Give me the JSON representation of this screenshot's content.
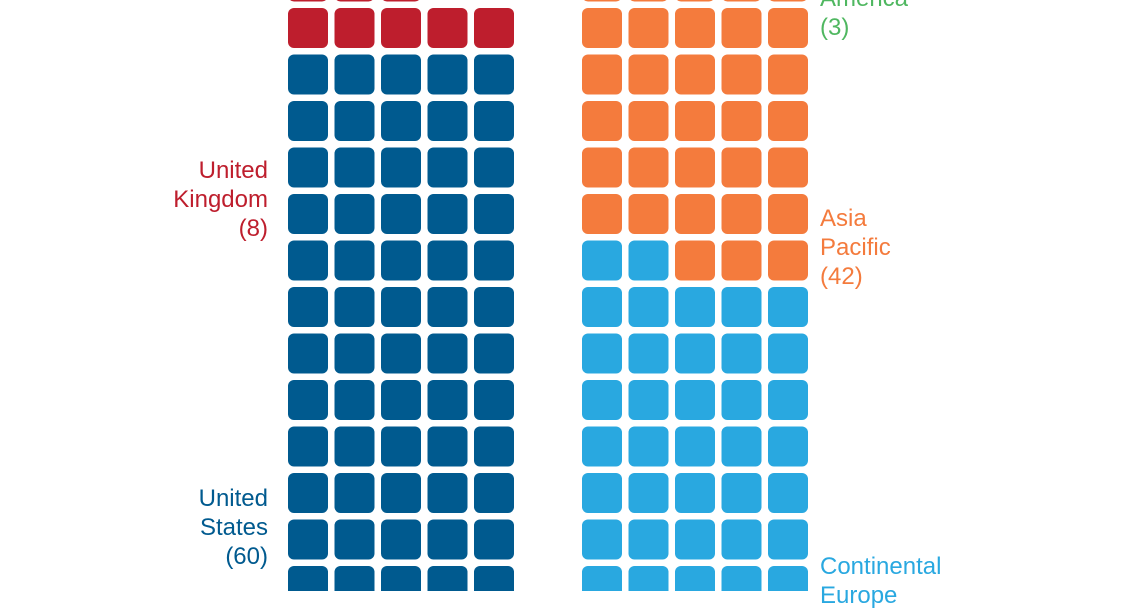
{
  "chart_data": {
    "type": "waffle",
    "columns": [
      {
        "groups": [
          {
            "name": "United States",
            "label_lines": [
              "United",
              "States"
            ],
            "count_text": "(60)",
            "value": 60,
            "color": "#005a8f"
          },
          {
            "name": "United Kingdom",
            "label_lines": [
              "United",
              "Kingdom"
            ],
            "count_text": "(8)",
            "value": 8,
            "color": "#be1e2d"
          }
        ]
      },
      {
        "groups": [
          {
            "name": "Continental Europe",
            "label_lines": [
              "Continental",
              "Europe"
            ],
            "count_text": "",
            "value": null,
            "color": "#29a8e0"
          },
          {
            "name": "Asia Pacific",
            "label_lines": [
              "Asia",
              "Pacific"
            ],
            "count_text": "(42)",
            "value": 42,
            "color": "#f47b3d"
          },
          {
            "name": "America",
            "label_lines": [
              "America"
            ],
            "count_text": "(3)",
            "value": 3,
            "color": "#4fb760"
          }
        ]
      }
    ],
    "squares_per_row": 5
  }
}
